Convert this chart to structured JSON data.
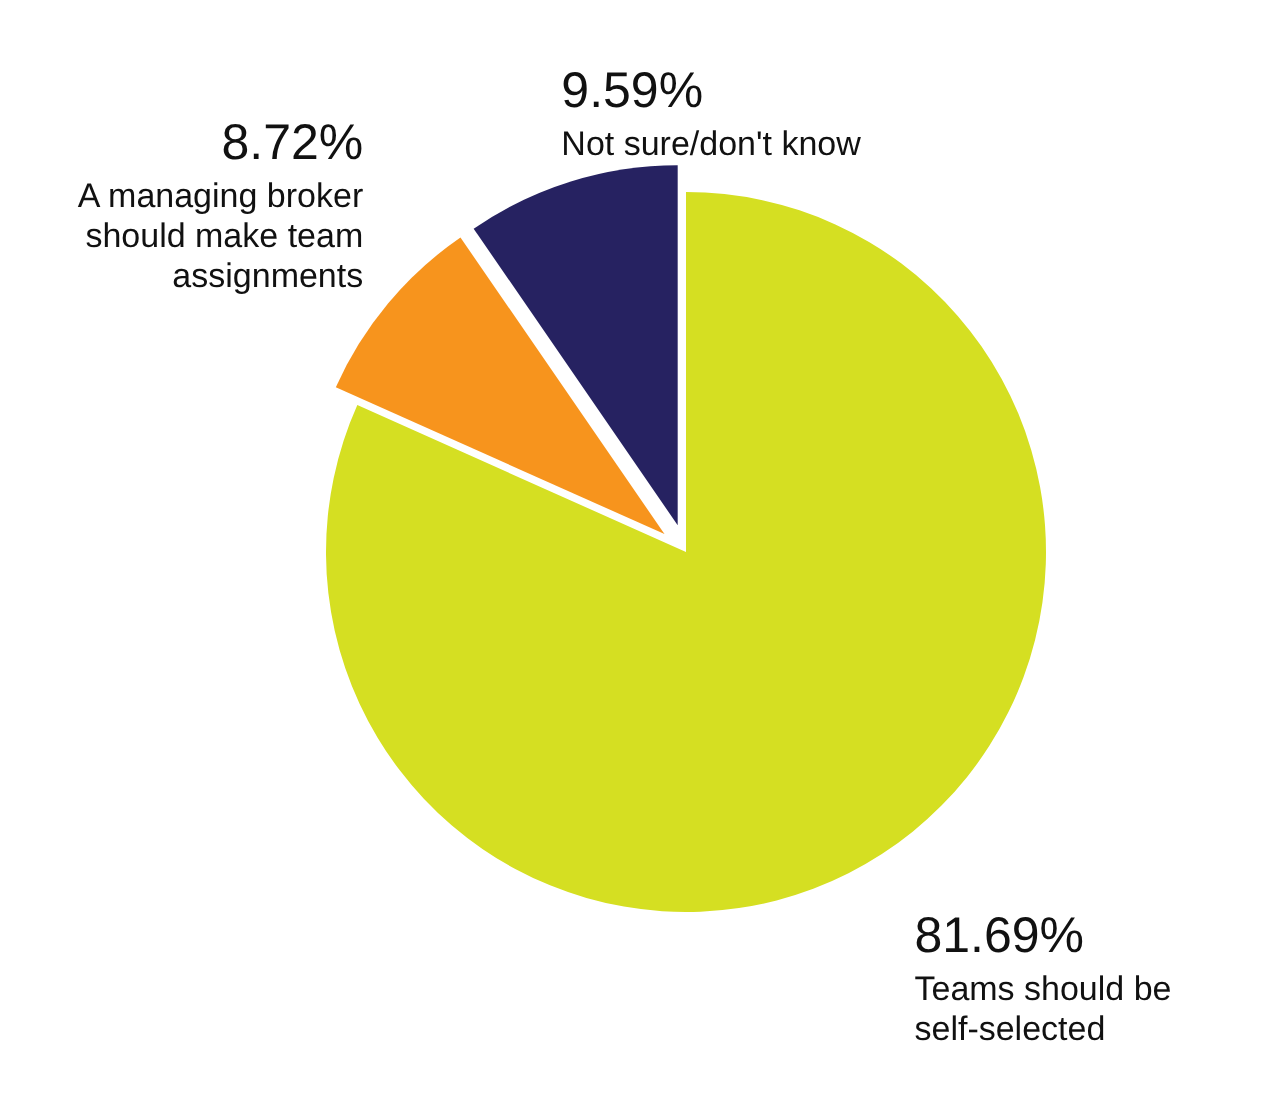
{
  "chart_data": {
    "type": "pie",
    "categories": [
      "Teams should be self-selected",
      "A managing broker should make team assignments",
      "Not sure/don't know"
    ],
    "values": [
      81.69,
      8.72,
      9.59
    ],
    "value_labels": [
      "81.69%",
      "8.72%",
      "9.59%"
    ],
    "colors": [
      "#d5df22",
      "#f7941d",
      "#262261"
    ],
    "legend": false
  }
}
